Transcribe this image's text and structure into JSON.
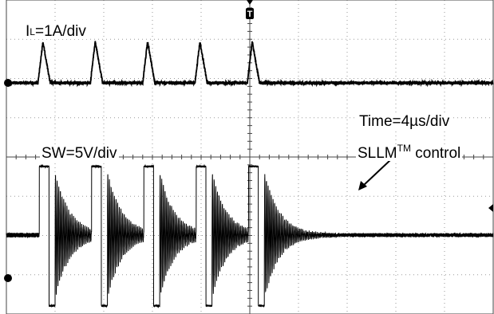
{
  "chart_data": {
    "type": "line",
    "title": "",
    "xlabel": "",
    "ylabel": "",
    "grid": true,
    "x_divisions": 10,
    "y_divisions": 8,
    "time_scale": {
      "text": "Time=4µs/div",
      "value": 4,
      "unit": "µs/div"
    },
    "series": [
      {
        "name": "IL",
        "label_main": "I",
        "label_sub": "L",
        "label_rest": "=1A/div",
        "scale_value": 1,
        "scale_unit": "A/div",
        "color": "#000000",
        "description_of_waveform": "triangular current pulses",
        "pulse_times_us": [
          3.0,
          7.3,
          11.6,
          15.9,
          20.2
        ],
        "pulse_peak_div": 1.05,
        "pulse_rise_us": 0.4,
        "pulse_fall_us": 0.6
      },
      {
        "name": "SW",
        "label_main": "SW=5V/div",
        "scale_value": 5,
        "scale_unit": "V/div",
        "color": "#000000",
        "high_level_div": 1.75,
        "low_level_div": -1.8,
        "idle_level_div": 0.0,
        "ring_start_amplitude_div": 1.6,
        "ring_period_us": 0.135,
        "switch_events_us": [
          {
            "high_start": 2.7,
            "high_end": 3.5,
            "low_end": 4.0
          },
          {
            "high_start": 7.0,
            "high_end": 7.8,
            "low_end": 8.3
          },
          {
            "high_start": 11.3,
            "high_end": 12.1,
            "low_end": 12.6
          },
          {
            "high_start": 15.6,
            "high_end": 16.4,
            "low_end": 16.9
          },
          {
            "high_start": 19.9,
            "high_end": 20.7,
            "low_end": 21.2
          }
        ]
      }
    ],
    "annotations": [
      {
        "text_main": "SLLM",
        "text_sup": "TM",
        "text_rest": " control"
      }
    ],
    "markers": {
      "trigger": "T",
      "ch1_marker": "ch1-ground-dot",
      "ch2_marker": "ch2-ground-dot"
    }
  }
}
